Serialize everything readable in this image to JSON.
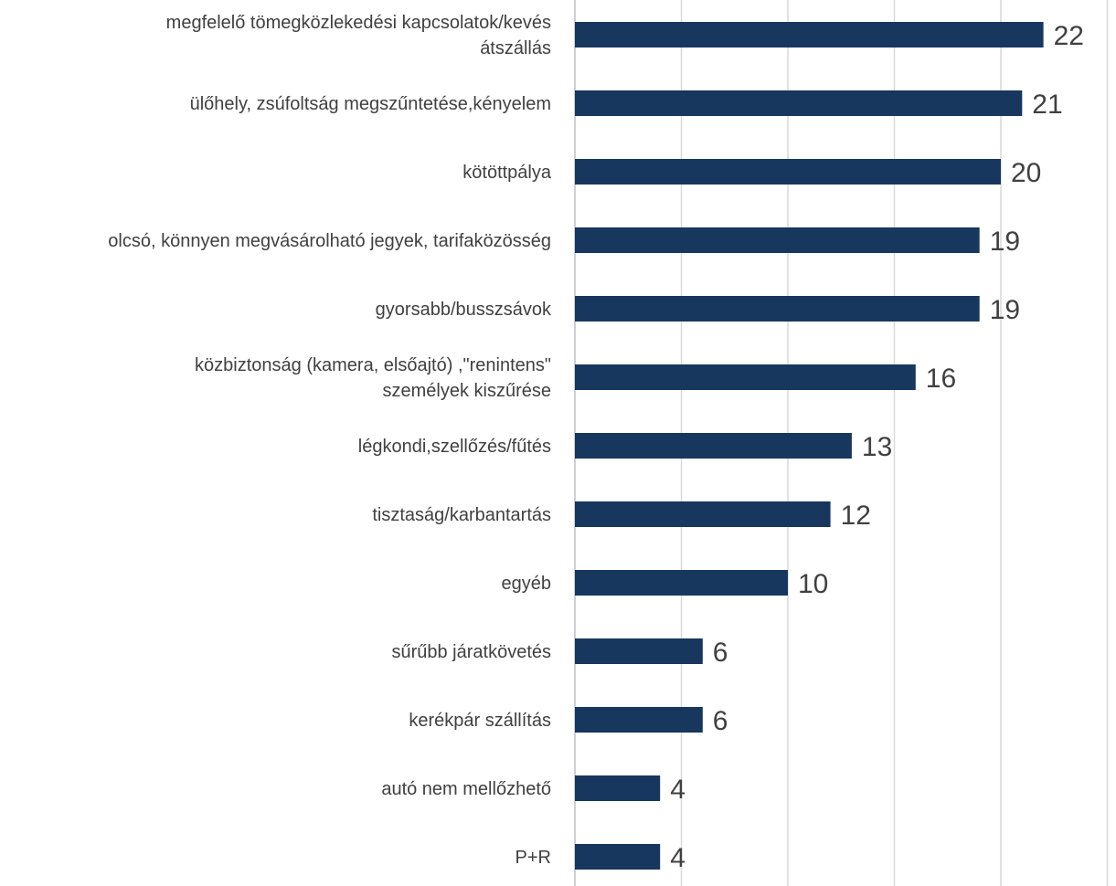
{
  "chart_data": {
    "type": "bar",
    "orientation": "horizontal",
    "title": "",
    "xlabel": "",
    "ylabel": "",
    "xlim": [
      0,
      25
    ],
    "grid": true,
    "legend": "none",
    "bar_color": "#17375e",
    "categories": [
      [
        "megfelelő  tömegközlekedési kapcsolatok/kevés",
        "átszállás"
      ],
      [
        "ülőhely, zsúfoltság megszűntetése,kényelem"
      ],
      [
        "kötöttpálya"
      ],
      [
        "olcsó, könnyen megvásárolható jegyek, tarifaközösség"
      ],
      [
        "gyorsabb/busszsávok"
      ],
      [
        "közbiztonság (kamera, elsőajtó) ,\"renintens\"",
        "személyek kiszűrése"
      ],
      [
        "légkondi,szellőzés/fűtés"
      ],
      [
        "tisztaság/karbantartás"
      ],
      [
        "egyéb"
      ],
      [
        "sűrűbb járatkövetés"
      ],
      [
        "kerékpár szállítás"
      ],
      [
        "autó nem mellőzhető"
      ],
      [
        "P+R"
      ]
    ],
    "values": [
      22,
      21,
      20,
      19,
      19,
      16,
      13,
      12,
      10,
      6,
      6,
      4,
      4
    ]
  }
}
